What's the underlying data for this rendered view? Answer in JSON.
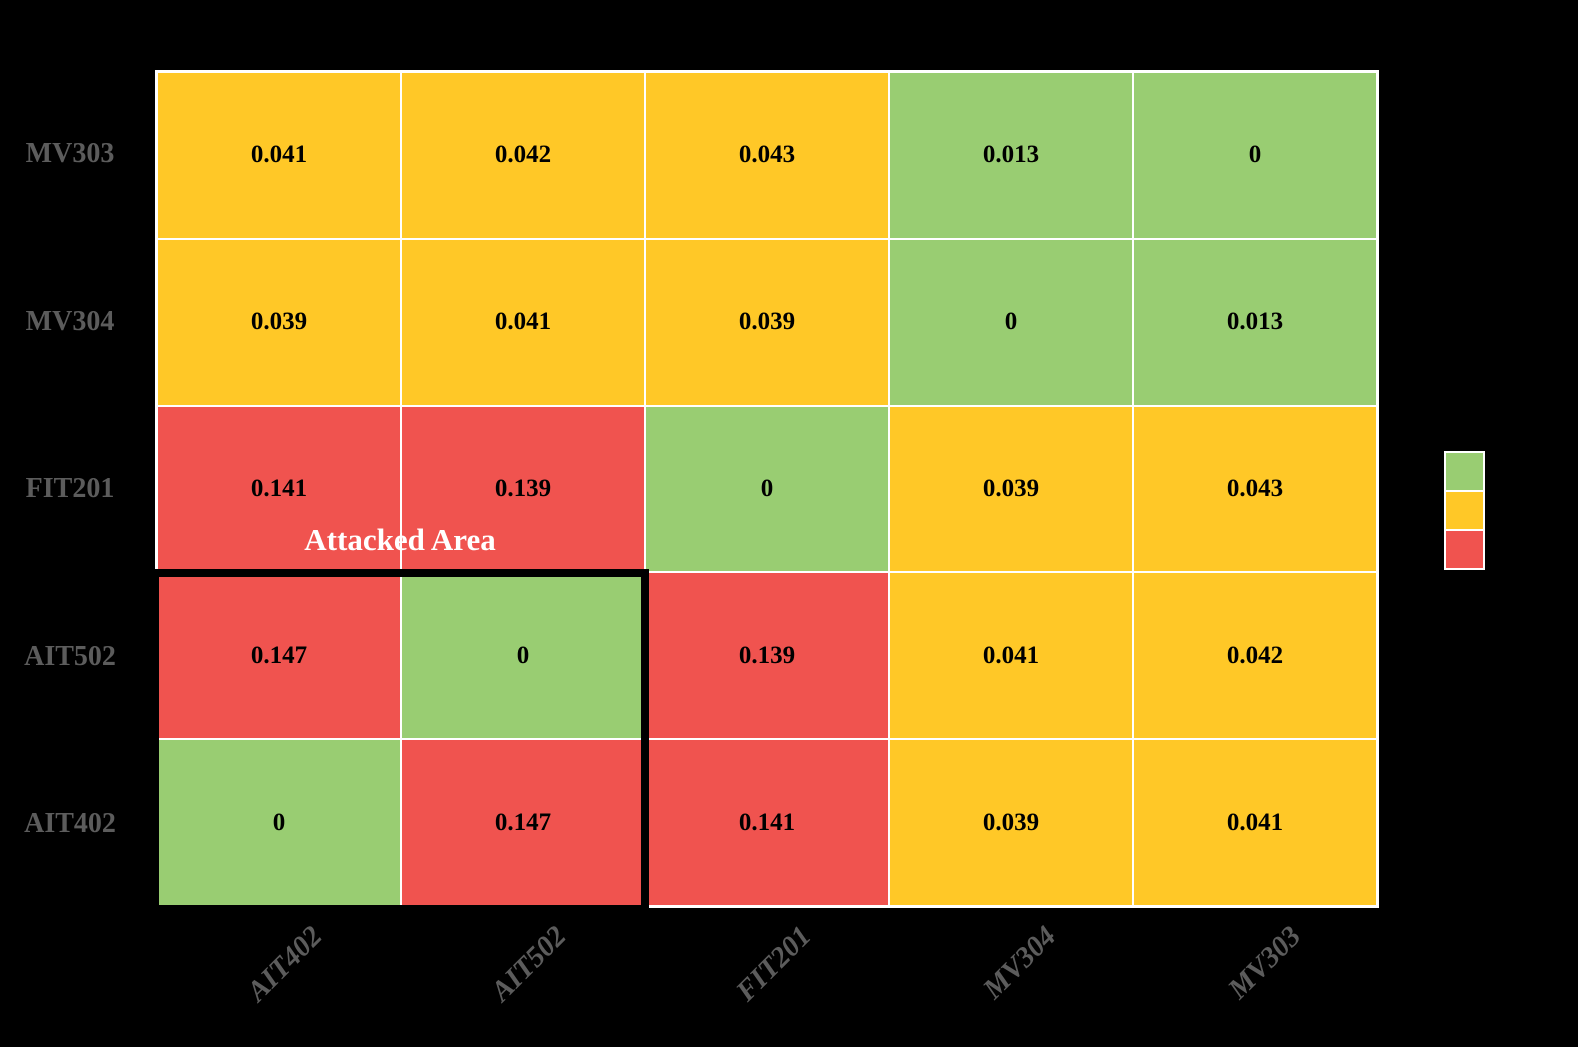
{
  "chart_data": {
    "type": "heatmap",
    "title": "",
    "y_labels": [
      "MV303",
      "MV304",
      "FIT201",
      "AIT502",
      "AIT402"
    ],
    "x_labels": [
      "AIT402",
      "AIT502",
      "FIT201",
      "MV304",
      "MV303"
    ],
    "values": [
      [
        0.041,
        0.042,
        0.043,
        0.013,
        0
      ],
      [
        0.039,
        0.041,
        0.039,
        0,
        0.013
      ],
      [
        0.141,
        0.139,
        0,
        0.039,
        0.043
      ],
      [
        0.147,
        0,
        0.139,
        0.041,
        0.042
      ],
      [
        0,
        0.147,
        0.141,
        0.039,
        0.041
      ]
    ],
    "cell_display": [
      [
        "0.041",
        "0.042",
        "0.043",
        "0.013",
        "0"
      ],
      [
        "0.039",
        "0.041",
        "0.039",
        "0",
        "0.013"
      ],
      [
        "0.141",
        "0.139",
        "0",
        "0.039",
        "0.043"
      ],
      [
        "0.147",
        "0",
        "0.139",
        "0.041",
        "0.042"
      ],
      [
        "0",
        "0.147",
        "0.141",
        "0.039",
        "0.041"
      ]
    ],
    "cell_levels": [
      [
        "mid",
        "mid",
        "mid",
        "low",
        "low"
      ],
      [
        "mid",
        "mid",
        "mid",
        "low",
        "low"
      ],
      [
        "high",
        "high",
        "low",
        "mid",
        "mid"
      ],
      [
        "high",
        "low",
        "high",
        "mid",
        "mid"
      ],
      [
        "low",
        "high",
        "high",
        "mid",
        "mid"
      ]
    ],
    "palette": {
      "low": "#99CD72",
      "mid": "#FFC827",
      "high": "#F0534F"
    },
    "annotation": {
      "label": "Attacked Area",
      "color": "#FFFFFF"
    },
    "attacked_area": {
      "row_span": [
        "AIT502",
        "AIT402"
      ],
      "col_span": [
        "AIT402",
        "AIT502"
      ],
      "outline_color": "#000000"
    },
    "legend": {
      "position": "right",
      "swatches": [
        {
          "name": "low",
          "color": "#99CD72"
        },
        {
          "name": "mid",
          "color": "#FFC827"
        },
        {
          "name": "high",
          "color": "#F0534F"
        }
      ]
    },
    "style": {
      "background": "#000000",
      "axis_label_color": "#5C5C5C",
      "cell_border_color": "#FFFFFF",
      "x_label_rotation_deg": 45,
      "grid": true
    }
  }
}
